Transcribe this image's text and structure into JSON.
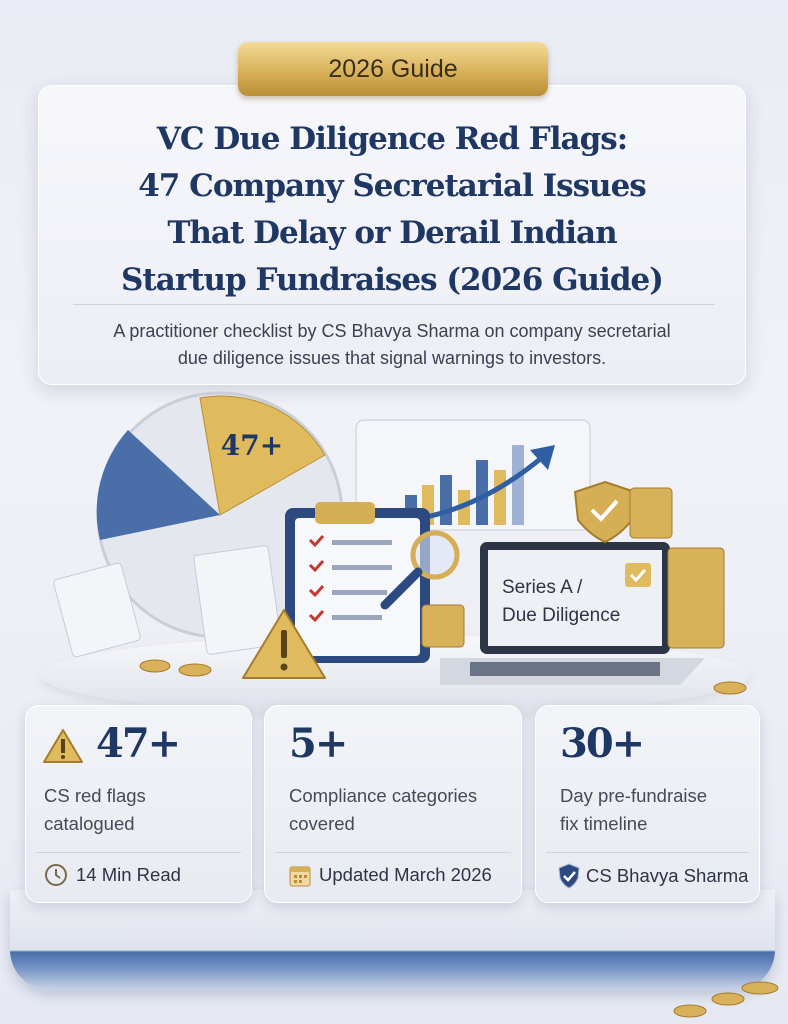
{
  "ribbon": "2026 Guide",
  "title_lines": [
    "VC Due Diligence Red Flags:",
    "47 Company Secretarial Issues",
    "That Delay or Derail Indian",
    "Startup Fundraises (2026 Guide)"
  ],
  "subtitle_lines": [
    "A practitioner checklist by CS Bhavya Sharma on company secretarial",
    "due diligence issues that signal warnings to investors."
  ],
  "illustration": {
    "pie_label": "47+",
    "laptop_lines": [
      "Series A /",
      "Due Diligence"
    ]
  },
  "stats": [
    {
      "value": "47+",
      "desc": [
        "CS red flags",
        "catalogued"
      ],
      "footer": "14 Min Read",
      "icon": "clock-icon"
    },
    {
      "value": "5+",
      "desc": [
        "Compliance categories",
        "covered"
      ],
      "footer": "Updated March 2026",
      "icon": "calendar-icon"
    },
    {
      "value": "30+",
      "desc": [
        "Day pre-fundraise",
        "fix timeline"
      ],
      "footer": "CS Bhavya Sharma",
      "icon": "shield-check-icon"
    }
  ],
  "colors": {
    "navy": "#1f3763",
    "gold": "#d6ae55",
    "blue": "#4a6fa8"
  }
}
